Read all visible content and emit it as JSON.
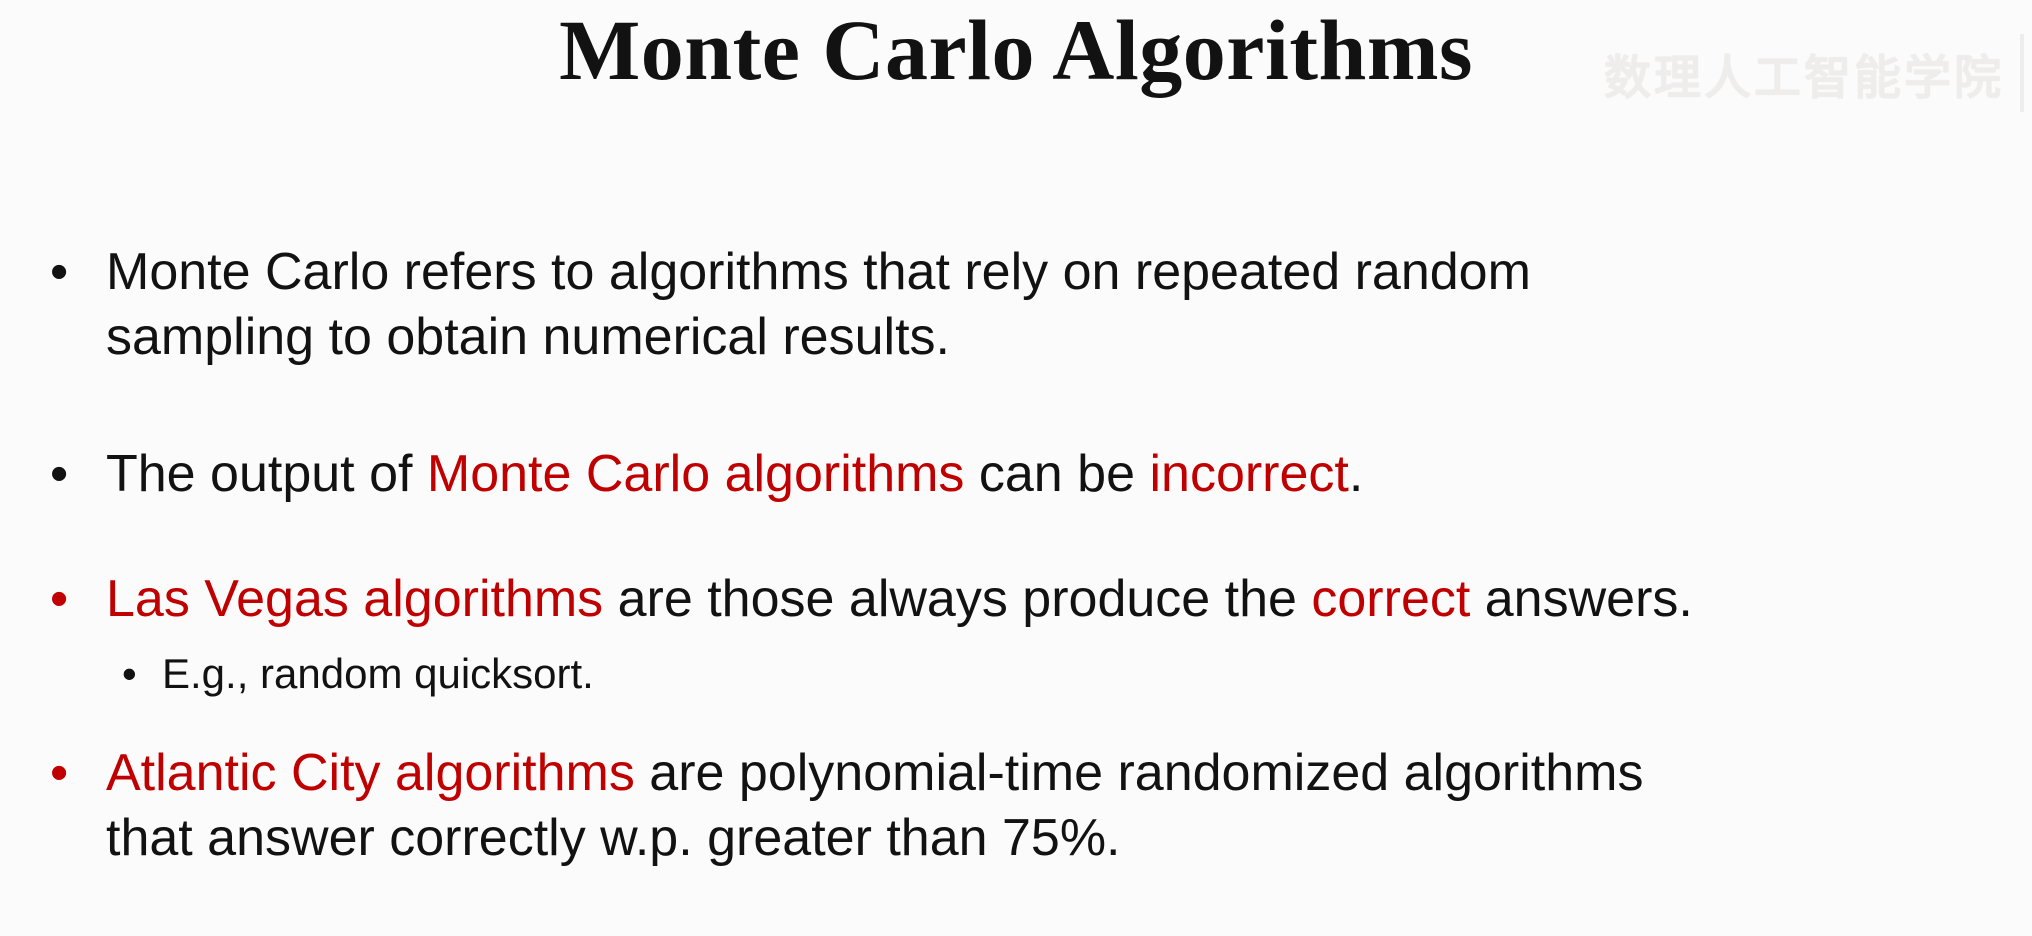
{
  "slide": {
    "title": "Monte Carlo Algorithms",
    "watermark": "数理人工智能学院",
    "colors": {
      "background": "#fbfbfb",
      "text": "#121212",
      "accent_red": "#c00000",
      "watermark": "#eeedec"
    },
    "bullets": [
      {
        "level": 1,
        "marker": "•",
        "marker_color": "black",
        "segments": [
          {
            "text": "Monte Carlo refers to algorithms that rely on repeated random\nsampling to obtain numerical results.",
            "color": "black"
          }
        ]
      },
      {
        "level": 1,
        "marker": "•",
        "marker_color": "black",
        "segments": [
          {
            "text": "The output of ",
            "color": "black"
          },
          {
            "text": "Monte Carlo algorithms",
            "color": "red"
          },
          {
            "text": " can be ",
            "color": "black"
          },
          {
            "text": "incorrect",
            "color": "red"
          },
          {
            "text": ".",
            "color": "black"
          }
        ]
      },
      {
        "level": 1,
        "marker": "•",
        "marker_color": "red",
        "segments": [
          {
            "text": "Las Vegas algorithms",
            "color": "red"
          },
          {
            "text": " are those always produce the ",
            "color": "black"
          },
          {
            "text": "correct",
            "color": "red"
          },
          {
            "text": " answers.",
            "color": "black"
          }
        ]
      },
      {
        "level": 2,
        "marker": "•",
        "marker_color": "black",
        "segments": [
          {
            "text": "E.g., random quicksort.",
            "color": "black"
          }
        ]
      },
      {
        "level": 1,
        "marker": "•",
        "marker_color": "red",
        "segments": [
          {
            "text": "Atlantic City algorithms",
            "color": "red"
          },
          {
            "text": " are polynomial-time randomized algorithms\nthat answer correctly w.p. greater than 75%.",
            "color": "black"
          }
        ]
      }
    ]
  }
}
